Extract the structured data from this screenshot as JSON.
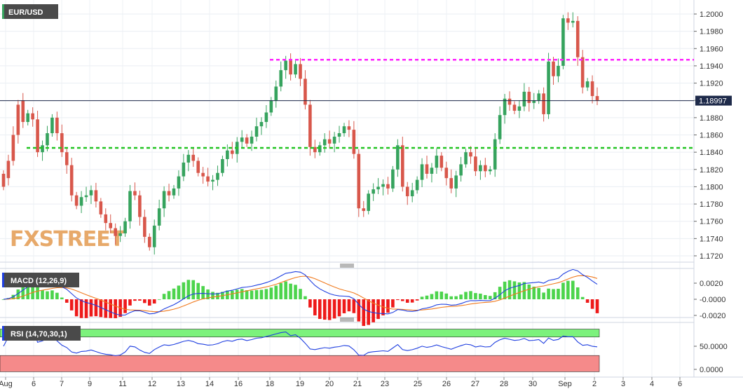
{
  "symbol": "EUR/USD",
  "watermark": "FXSTREET",
  "last_price": "1.18997",
  "colors": {
    "up": "#36a35e",
    "down": "#d8574b",
    "resistance": "#ff20ff",
    "support": "#22c422",
    "last_price_box": "#1e2a4a",
    "macd_line": "#1f3fe0",
    "signal_line": "#f07a1e",
    "hist_pos": "#4cd44c",
    "hist_neg": "#ee1a1a",
    "rsi_line": "#1f3fe0",
    "rsi_overbought": "#7cf27c",
    "rsi_oversold": "#f58a8a"
  },
  "chart_data": {
    "type": "candlestick",
    "price_axis": {
      "ylim": [
        1.171,
        1.2015
      ],
      "ticks": [
        "1.2000",
        "1.1980",
        "1.1960",
        "1.1940",
        "1.1920",
        "1.1900",
        "1.1880",
        "1.1860",
        "1.1840",
        "1.1820",
        "1.1800",
        "1.1780",
        "1.1760",
        "1.1740",
        "1.1720"
      ]
    },
    "x_labels": [
      "Aug",
      "6",
      "7",
      "9",
      "11",
      "12",
      "13",
      "14",
      "16",
      "18",
      "19",
      "20",
      "21",
      "23",
      "25",
      "26",
      "27",
      "28",
      "30",
      "Sep",
      "2",
      "3",
      "4",
      "6"
    ],
    "levels": {
      "resistance": 1.1947,
      "support": 1.1845,
      "last": 1.18997
    },
    "candles": [
      [
        1.1815,
        1.18
      ],
      [
        1.183,
        1.181
      ],
      [
        1.186,
        1.183
      ],
      [
        1.1895,
        1.186
      ],
      [
        1.19,
        1.1875
      ],
      [
        1.1875,
        1.1885
      ],
      [
        1.1885,
        1.1878
      ],
      [
        1.1878,
        1.184
      ],
      [
        1.184,
        1.1848
      ],
      [
        1.1848,
        1.1862
      ],
      [
        1.1862,
        1.188
      ],
      [
        1.188,
        1.1862
      ],
      [
        1.1862,
        1.184
      ],
      [
        1.184,
        1.1825
      ],
      [
        1.1825,
        1.179
      ],
      [
        1.179,
        1.1778
      ],
      [
        1.1778,
        1.1788
      ],
      [
        1.1788,
        1.179
      ],
      [
        1.179,
        1.1796
      ],
      [
        1.1796,
        1.1783
      ],
      [
        1.1783,
        1.1768
      ],
      [
        1.1768,
        1.1758
      ],
      [
        1.1758,
        1.1752
      ],
      [
        1.1752,
        1.1743
      ],
      [
        1.1743,
        1.1746
      ],
      [
        1.1746,
        1.176
      ],
      [
        1.176,
        1.1795
      ],
      [
        1.1795,
        1.179
      ],
      [
        1.179,
        1.1765
      ],
      [
        1.1765,
        1.1742
      ],
      [
        1.1742,
        1.173
      ],
      [
        1.173,
        1.1755
      ],
      [
        1.1755,
        1.1775
      ],
      [
        1.1775,
        1.1795
      ],
      [
        1.1795,
        1.179
      ],
      [
        1.179,
        1.1798
      ],
      [
        1.1798,
        1.1812
      ],
      [
        1.1812,
        1.1828
      ],
      [
        1.1828,
        1.1837
      ],
      [
        1.1837,
        1.183
      ],
      [
        1.183,
        1.1816
      ],
      [
        1.1816,
        1.1812
      ],
      [
        1.1812,
        1.1806
      ],
      [
        1.1806,
        1.1808
      ],
      [
        1.1808,
        1.1816
      ],
      [
        1.1816,
        1.1832
      ],
      [
        1.1832,
        1.1842
      ],
      [
        1.1842,
        1.1838
      ],
      [
        1.1838,
        1.1852
      ],
      [
        1.1852,
        1.1857
      ],
      [
        1.1857,
        1.185
      ],
      [
        1.185,
        1.1858
      ],
      [
        1.1858,
        1.187
      ],
      [
        1.187,
        1.1875
      ],
      [
        1.1875,
        1.1886
      ],
      [
        1.1886,
        1.19
      ],
      [
        1.19,
        1.1916
      ],
      [
        1.1916,
        1.1935
      ],
      [
        1.1935,
        1.1946
      ],
      [
        1.1946,
        1.193
      ],
      [
        1.193,
        1.1942
      ],
      [
        1.1942,
        1.1925
      ],
      [
        1.1925,
        1.1895
      ],
      [
        1.1895,
        1.1846
      ],
      [
        1.1846,
        1.184
      ],
      [
        1.184,
        1.1848
      ],
      [
        1.1848,
        1.1855
      ],
      [
        1.1855,
        1.185
      ],
      [
        1.185,
        1.1858
      ],
      [
        1.1858,
        1.1862
      ],
      [
        1.1862,
        1.187
      ],
      [
        1.187,
        1.1866
      ],
      [
        1.1866,
        1.1838
      ],
      [
        1.1838,
        1.1775
      ],
      [
        1.1775,
        1.1772
      ],
      [
        1.1772,
        1.1792
      ],
      [
        1.1792,
        1.1797
      ],
      [
        1.1797,
        1.18
      ],
      [
        1.18,
        1.1803
      ],
      [
        1.1803,
        1.1798
      ],
      [
        1.1798,
        1.182
      ],
      [
        1.182,
        1.1848
      ],
      [
        1.1848,
        1.18
      ],
      [
        1.18,
        1.1789
      ],
      [
        1.1789,
        1.1796
      ],
      [
        1.1796,
        1.1808
      ],
      [
        1.1808,
        1.1826
      ],
      [
        1.1826,
        1.1815
      ],
      [
        1.1815,
        1.1822
      ],
      [
        1.1822,
        1.1836
      ],
      [
        1.1836,
        1.1822
      ],
      [
        1.1822,
        1.181
      ],
      [
        1.181,
        1.1798
      ],
      [
        1.1798,
        1.1813
      ],
      [
        1.1813,
        1.1826
      ],
      [
        1.1826,
        1.184
      ],
      [
        1.184,
        1.1835
      ],
      [
        1.1835,
        1.1818
      ],
      [
        1.1818,
        1.1825
      ],
      [
        1.1825,
        1.1818
      ],
      [
        1.1818,
        1.182
      ],
      [
        1.182,
        1.1855
      ],
      [
        1.1855,
        1.1883
      ],
      [
        1.1883,
        1.1902
      ],
      [
        1.1902,
        1.1895
      ],
      [
        1.1895,
        1.1888
      ],
      [
        1.1888,
        1.1893
      ],
      [
        1.1893,
        1.191
      ],
      [
        1.191,
        1.1897
      ],
      [
        1.1897,
        1.19
      ],
      [
        1.19,
        1.1908
      ],
      [
        1.1908,
        1.1884
      ],
      [
        1.1884,
        1.1945
      ],
      [
        1.1945,
        1.1928
      ],
      [
        1.1928,
        1.194
      ],
      [
        1.194,
        1.1995
      ],
      [
        1.1995,
        1.199
      ],
      [
        1.199,
        1.1992
      ],
      [
        1.1992,
        1.195
      ],
      [
        1.195,
        1.1915
      ],
      [
        1.1915,
        1.1922
      ],
      [
        1.1922,
        1.1905
      ],
      [
        1.1905,
        1.19
      ]
    ],
    "macd": {
      "label": "MACD (12,26,9)",
      "ylim": [
        -0.0025,
        0.0045
      ],
      "ticks": [
        "0.0020",
        "-0.0000",
        "-0.0020"
      ]
    },
    "rsi": {
      "label": "RSI (14,70,30,1)",
      "ylim": [
        -5,
        87
      ],
      "ticks": [
        "50.0000",
        "0.0000"
      ],
      "overbought": 70,
      "oversold": 30
    }
  }
}
